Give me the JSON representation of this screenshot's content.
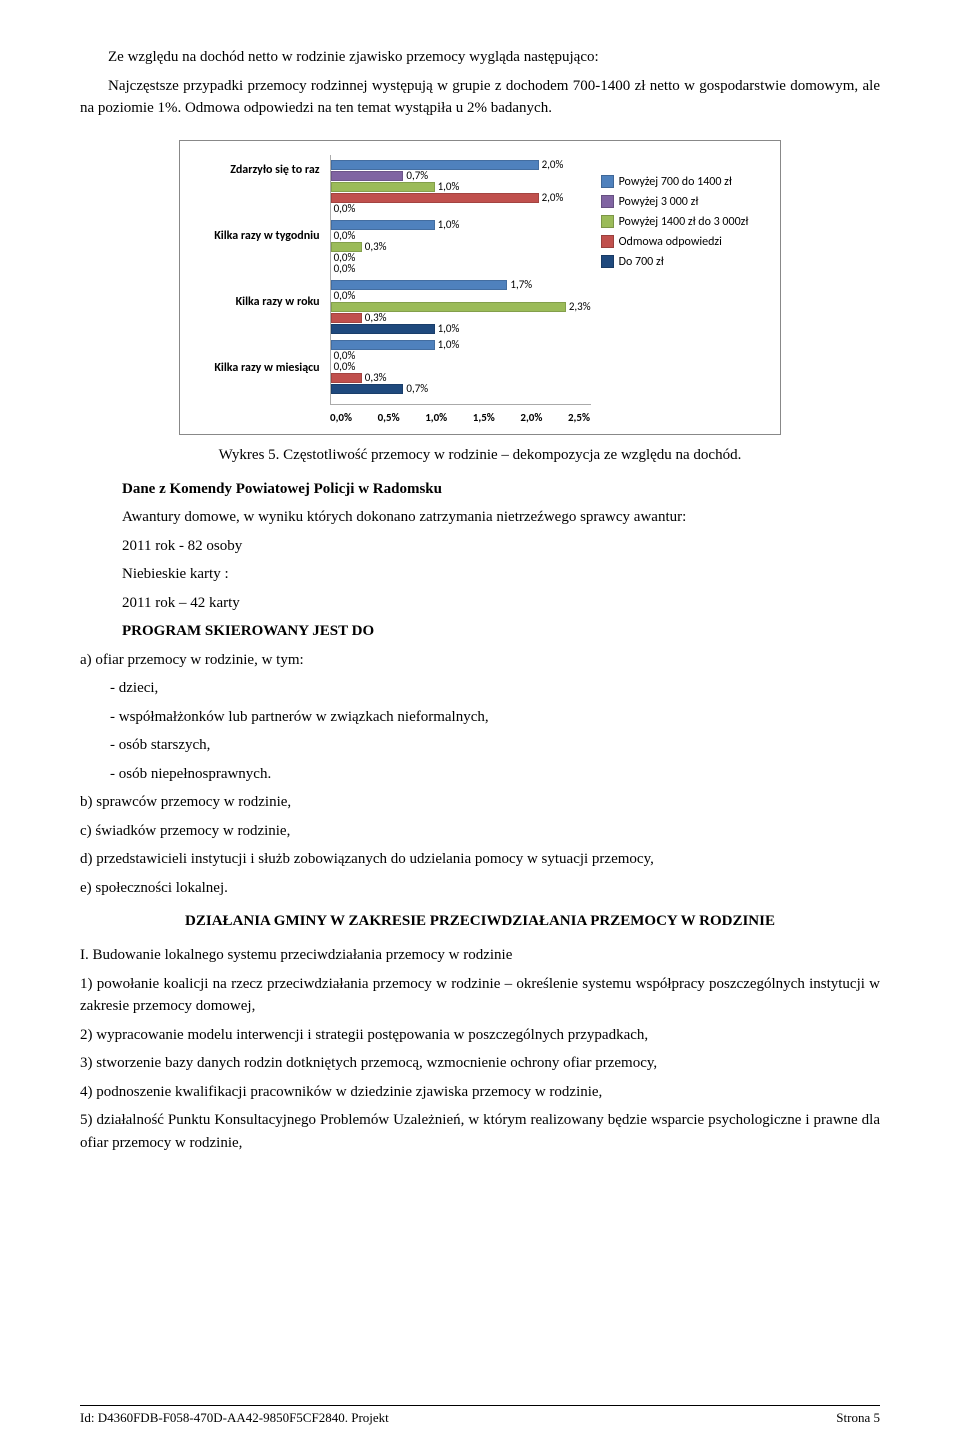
{
  "intro": {
    "p1": "Ze względu na dochód netto w rodzinie zjawisko przemocy wygląda następująco:",
    "p2": "Najczęstsze przypadki przemocy rodzinnej występują w grupie z dochodem 700-1400 zł netto w gospodarstwie domowym, ale na poziomie 1%. Odmowa odpowiedzi na ten temat wystąpiła u 2% badanych."
  },
  "chart": {
    "caption": "Wykres 5. Częstotliwość przemocy w rodzinie – dekompozycja ze względu na dochód.",
    "y_categories": [
      "Zdarzyło się to raz",
      "Kilka razy w tygodniu",
      "Kilka razy w roku",
      "Kilka razy w miesiącu"
    ],
    "series": [
      {
        "name": "Powyżej 700 do 1400 zł",
        "color": "#4f81bd"
      },
      {
        "name": "Powyżej 3 000 zł",
        "color": "#8064a2"
      },
      {
        "name": "Powyżej 1400 zł do 3 000zł",
        "color": "#9bbb59"
      },
      {
        "name": "Odmowa odpowiedzi",
        "color": "#c0504d"
      },
      {
        "name": "Do 700 zł",
        "color": "#1f497d"
      }
    ],
    "xmax": 2.5,
    "xticks": [
      "0,0%",
      "0,5%",
      "1,0%",
      "1,5%",
      "2,0%",
      "2,5%"
    ],
    "groups": [
      {
        "bars": [
          {
            "v": 2.0,
            "l": "2,0%",
            "c": "#4f81bd"
          },
          {
            "v": 0.7,
            "l": "0,7%",
            "c": "#8064a2"
          },
          {
            "v": 1.0,
            "l": "1,0%",
            "c": "#9bbb59"
          },
          {
            "v": 2.0,
            "l": "2,0%",
            "c": "#c0504d"
          },
          {
            "v": 0.0,
            "l": "0,0%",
            "c": "#1f497d"
          }
        ]
      },
      {
        "bars": [
          {
            "v": 1.0,
            "l": "1,0%",
            "c": "#4f81bd"
          },
          {
            "v": 0.0,
            "l": "0,0%",
            "c": "#8064a2"
          },
          {
            "v": 0.3,
            "l": "0,3%",
            "c": "#9bbb59"
          },
          {
            "v": 0.0,
            "l": "0,0%",
            "c": "#c0504d"
          },
          {
            "v": 0.0,
            "l": "0,0%",
            "c": "#1f497d"
          }
        ]
      },
      {
        "bars": [
          {
            "v": 1.7,
            "l": "1,7%",
            "c": "#4f81bd"
          },
          {
            "v": 0.0,
            "l": "0,0%",
            "c": "#8064a2"
          },
          {
            "v": 2.3,
            "l": "2,3%",
            "c": "#9bbb59"
          },
          {
            "v": 0.3,
            "l": "0,3%",
            "c": "#c0504d"
          },
          {
            "v": 1.0,
            "l": "1,0%",
            "c": "#1f497d"
          }
        ]
      },
      {
        "bars": [
          {
            "v": 1.0,
            "l": "1,0%",
            "c": "#4f81bd"
          },
          {
            "v": 0.0,
            "l": "0,0%",
            "c": "#8064a2"
          },
          {
            "v": 0.0,
            "l": "0,0%",
            "c": "#9bbb59"
          },
          {
            "v": 0.3,
            "l": "0,3%",
            "c": "#c0504d"
          },
          {
            "v": 0.7,
            "l": "0,7%",
            "c": "#1f497d"
          }
        ]
      }
    ]
  },
  "dane": {
    "heading": "Dane z Komendy Powiatowej Policji w Radomsku",
    "p1": "Awantury domowe, w wyniku których dokonano zatrzymania nietrzeźwego sprawcy awantur:",
    "p2": "2011 rok -  82 osoby",
    "p3": "Niebieskie karty :",
    "p4": "2011 rok – 42 karty"
  },
  "program": {
    "heading": "PROGRAM SKIEROWANY JEST DO",
    "a": "a) ofiar przemocy w rodzinie, w tym:",
    "a_items": [
      "- dzieci,",
      "- współmałżonków lub partnerów w związkach nieformalnych,",
      "- osób starszych,",
      "- osób niepełnosprawnych."
    ],
    "b": "b) sprawców przemocy w rodzinie,",
    "c": "c) świadków przemocy w rodzinie,",
    "d": "d) przedstawicieli instytucji i służb zobowiązanych do udzielania pomocy w sytuacji przemocy,",
    "e": "e) społeczności lokalnej."
  },
  "dzialania": {
    "heading": "DZIAŁANIA GMINY W ZAKRESIE PRZECIWDZIAŁANIA PRZEMOCY W RODZINIE",
    "I": "I. Budowanie lokalnego systemu przeciwdziałania przemocy w rodzinie",
    "items": [
      "1) powołanie koalicji na rzecz przeciwdziałania przemocy w rodzinie – określenie systemu współpracy poszczególnych instytucji w zakresie przemocy domowej,",
      "2) wypracowanie modelu interwencji i strategii postępowania w poszczególnych przypadkach,",
      "3) stworzenie bazy danych rodzin dotkniętych przemocą, wzmocnienie ochrony ofiar przemocy,",
      "4) podnoszenie kwalifikacji pracowników w dziedzinie zjawiska przemocy w rodzinie,",
      "5) działalność Punktu Konsultacyjnego Problemów Uzależnień, w którym realizowany będzie wsparcie psychologiczne i prawne dla ofiar przemocy w rodzinie,"
    ]
  },
  "footer": {
    "left": "Id: D4360FDB-F058-470D-AA42-9850F5CF2840. Projekt",
    "right": "Strona 5"
  }
}
